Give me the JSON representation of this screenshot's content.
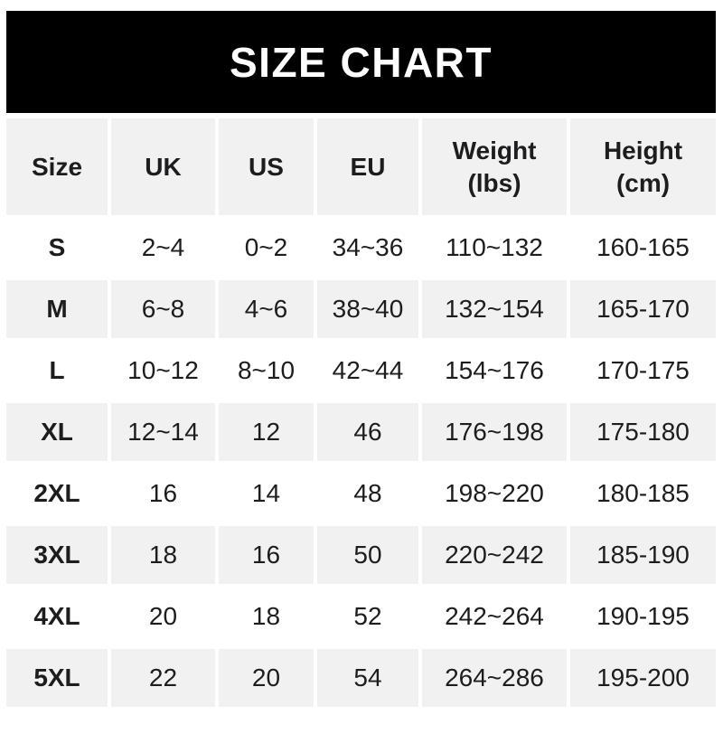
{
  "chart_data": {
    "type": "table",
    "title": "SIZE CHART",
    "columns": [
      "Size",
      "UK",
      "US",
      "EU",
      "Weight (lbs)",
      "Height (cm)"
    ],
    "rows": [
      [
        "S",
        "2~4",
        "0~2",
        "34~36",
        "110~132",
        "160-165"
      ],
      [
        "M",
        "6~8",
        "4~6",
        "38~40",
        "132~154",
        "165-170"
      ],
      [
        "L",
        "10~12",
        "8~10",
        "42~44",
        "154~176",
        "170-175"
      ],
      [
        "XL",
        "12~14",
        "12",
        "46",
        "176~198",
        "175-180"
      ],
      [
        "2XL",
        "16",
        "14",
        "48",
        "198~220",
        "180-185"
      ],
      [
        "3XL",
        "18",
        "16",
        "50",
        "220~242",
        "185-190"
      ],
      [
        "4XL",
        "20",
        "18",
        "52",
        "242~264",
        "190-195"
      ],
      [
        "5XL",
        "22",
        "20",
        "54",
        "264~286",
        "195-200"
      ]
    ],
    "layout_hints": {
      "shaded_rows": [
        "header",
        "M",
        "XL",
        "3XL",
        "5XL"
      ],
      "grid": "white gutters between cells, no borders"
    }
  },
  "headers": [
    {
      "line1": "Size",
      "line2": ""
    },
    {
      "line1": "UK",
      "line2": ""
    },
    {
      "line1": "US",
      "line2": ""
    },
    {
      "line1": "EU",
      "line2": ""
    },
    {
      "line1": "Weight",
      "line2": "(lbs)"
    },
    {
      "line1": "Height",
      "line2": "(cm)"
    }
  ],
  "colors": {
    "banner_bg": "#000000",
    "banner_text": "#ffffff",
    "row_shade": "#f1f1f2",
    "text": "#1d1d1f",
    "background": "#ffffff"
  }
}
